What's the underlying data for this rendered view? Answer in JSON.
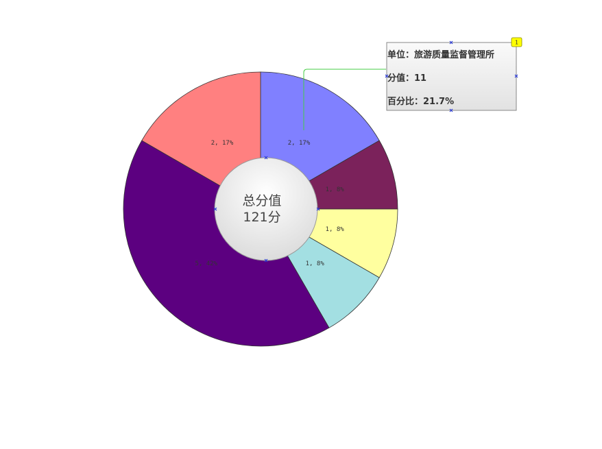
{
  "chart_data": {
    "type": "donut",
    "center_label": {
      "line1": "总分值",
      "line2": "121分"
    },
    "slices": [
      {
        "label": "2, 17%",
        "value": 2,
        "percent": 17,
        "color": "#8080ff"
      },
      {
        "label": "1, 8%",
        "value": 1,
        "percent": 8,
        "color": "#7b225b"
      },
      {
        "label": "1, 8%",
        "value": 1,
        "percent": 8,
        "color": "#ffff9f"
      },
      {
        "label": "1, 8%",
        "value": 1,
        "percent": 8,
        "color": "#a3dfe2"
      },
      {
        "label": "5, 42%",
        "value": 5,
        "percent": 42,
        "color": "#5c0080"
      },
      {
        "label": "2, 17%",
        "value": 2,
        "percent": 17,
        "color": "#ff8080"
      }
    ],
    "tooltip": {
      "badge": "1",
      "lines": [
        "单位：旅游质量监督管理所",
        "分值：11",
        "百分比：21.7%"
      ]
    }
  }
}
